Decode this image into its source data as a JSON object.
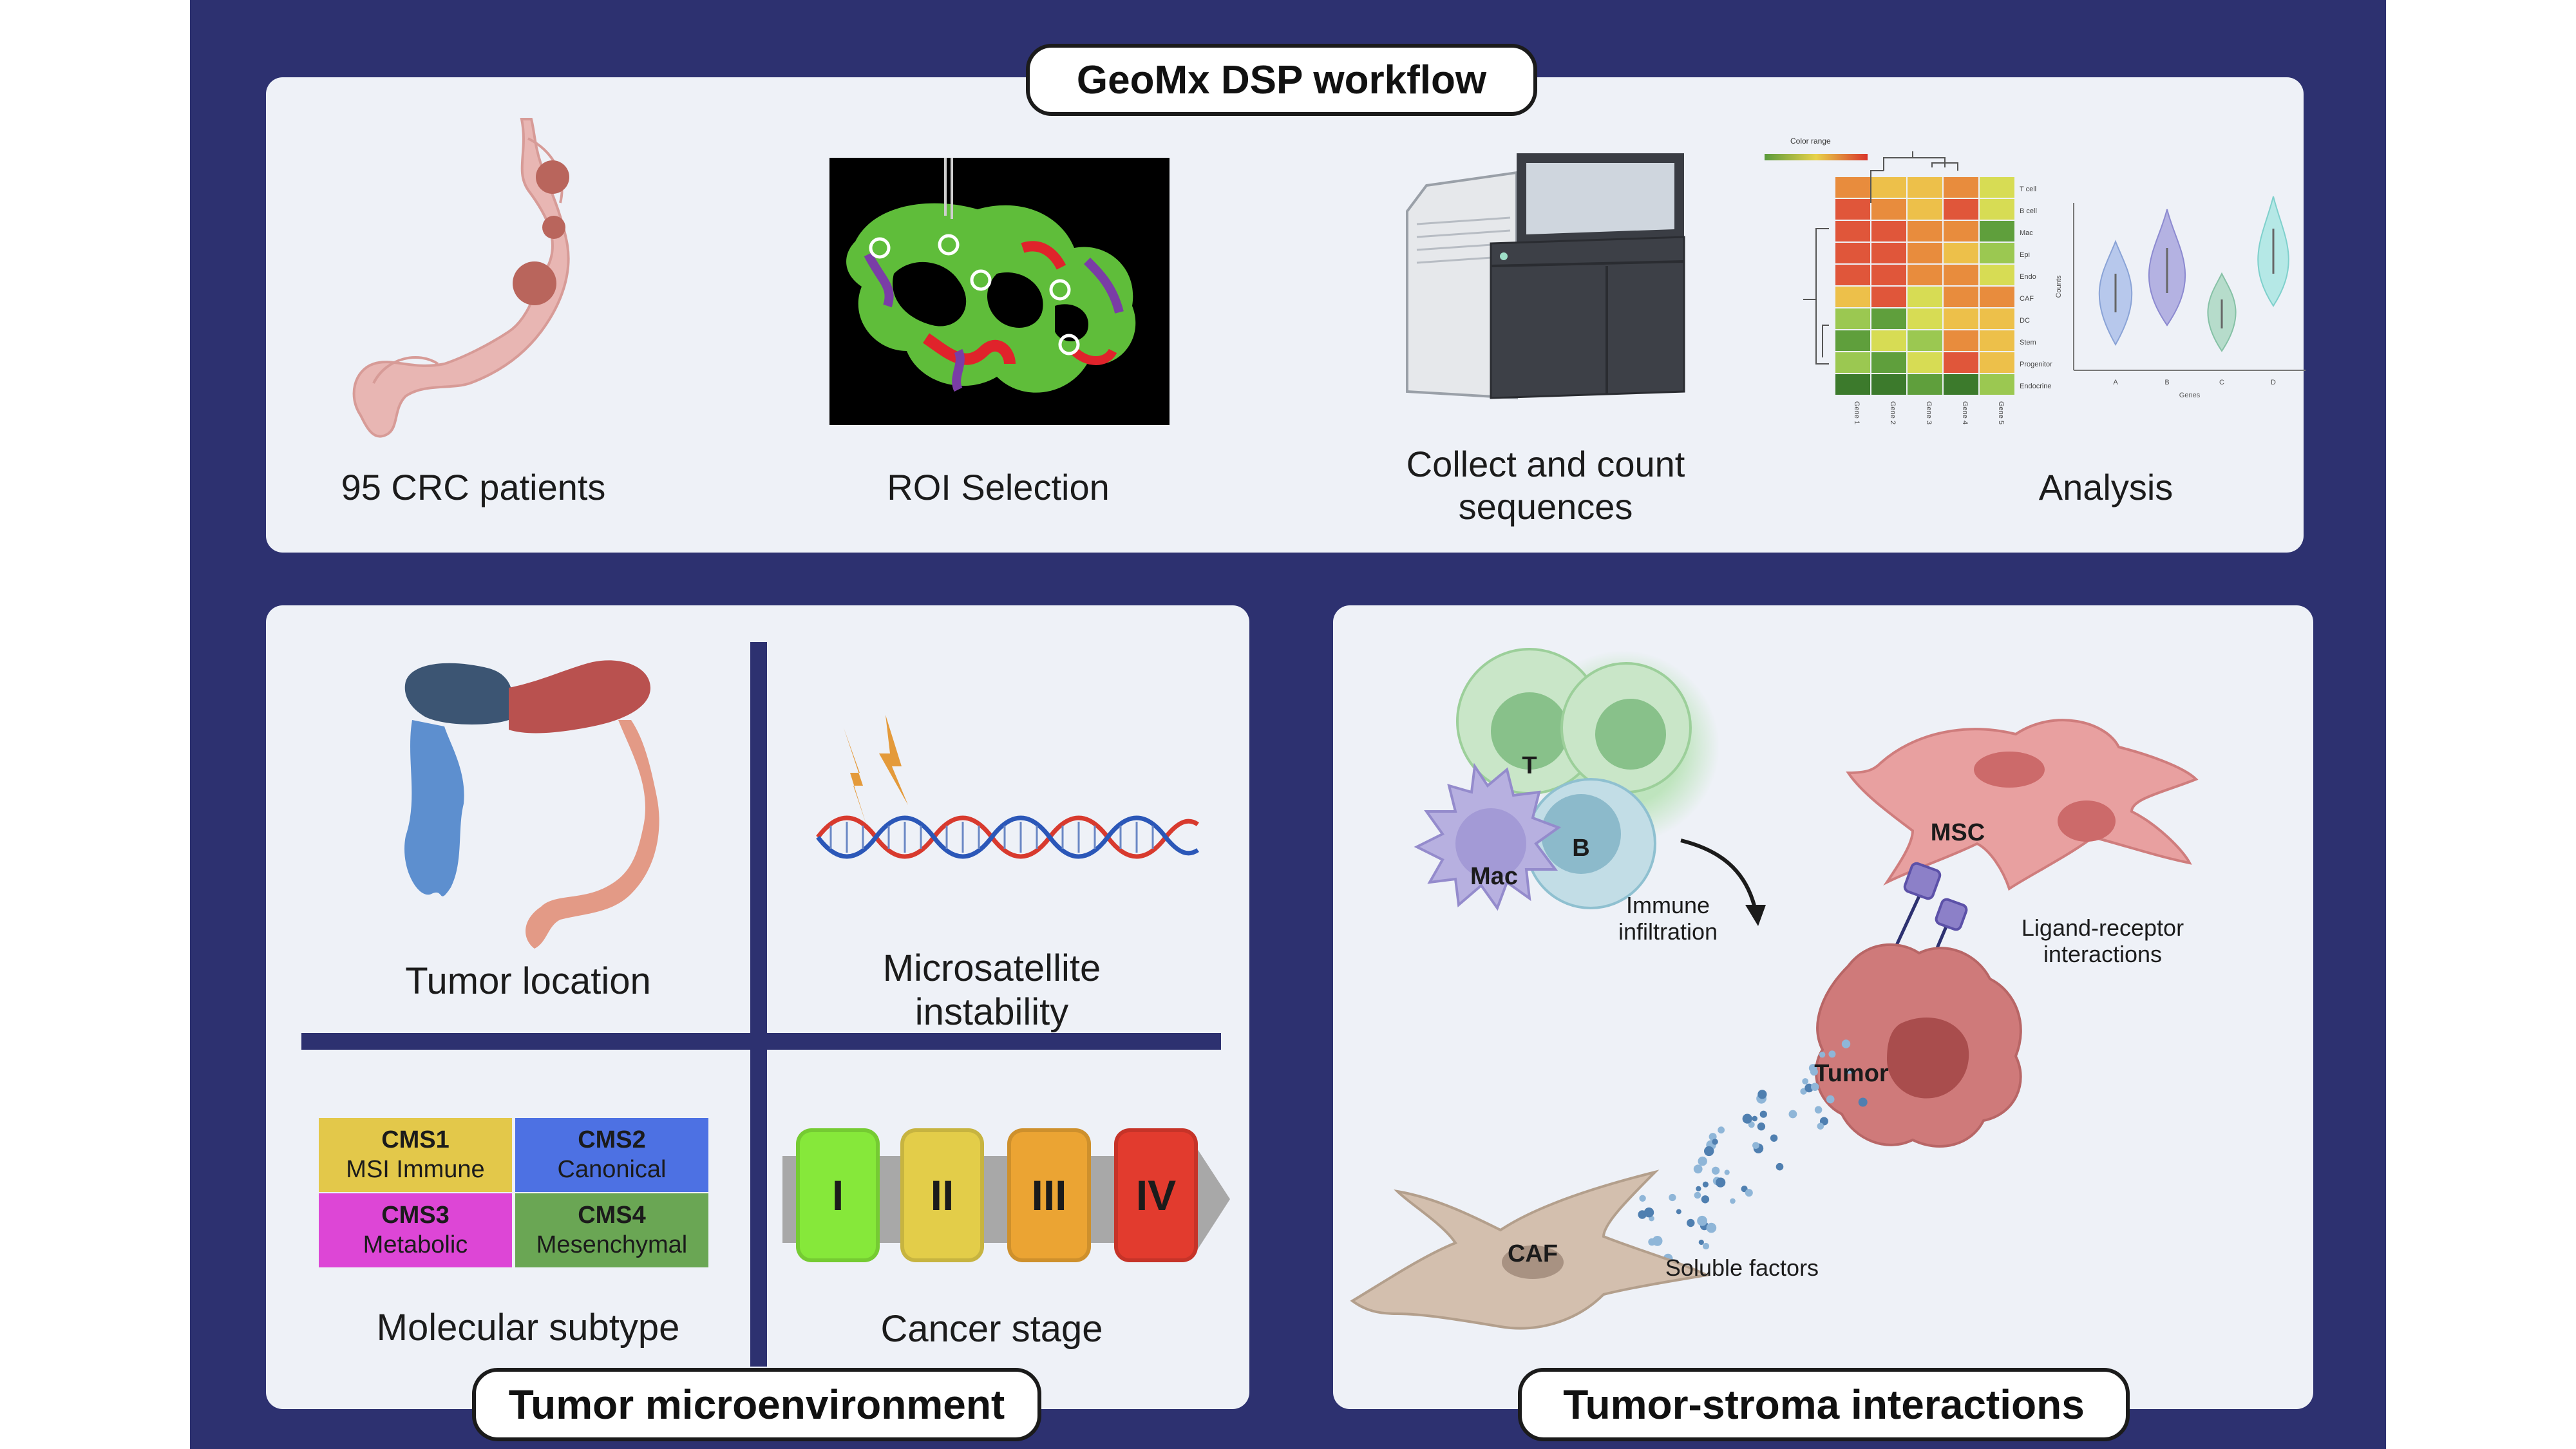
{
  "workflow": {
    "title": "GeoMx DSP workflow",
    "steps": [
      {
        "label": "95 CRC patients",
        "icon": "colon-icon"
      },
      {
        "label": "ROI Selection",
        "icon": "roi-tissue-icon"
      },
      {
        "label": "Collect and count sequences",
        "icon": "sequencer-icon"
      },
      {
        "label": "Analysis",
        "icon": "heatmap-violin-icon"
      }
    ],
    "heatmap": {
      "legend": "Color range",
      "rows": [
        "T cell",
        "B cell",
        "Mac",
        "Epi",
        "Endo",
        "CAF",
        "DC",
        "Stem",
        "Progenitor",
        "Endocrine"
      ],
      "cols": [
        "Gene 1",
        "Gene 2",
        "Gene 3",
        "Gene 4",
        "Gene 5"
      ],
      "violin_xlabel": "Genes",
      "violin_ylabel": "Counts",
      "violin_categories": [
        "A",
        "B",
        "C",
        "D"
      ]
    }
  },
  "tme": {
    "title": "Tumor microenvironment",
    "quadrants": {
      "location": "Tumor location",
      "msi": "Microsatellite instability",
      "subtype": "Molecular subtype",
      "stage": "Cancer stage"
    },
    "cms": [
      {
        "code": "CMS1",
        "name": "MSI Immune",
        "color": "#e3c84a"
      },
      {
        "code": "CMS2",
        "name": "Canonical",
        "color": "#4d71e3"
      },
      {
        "code": "CMS3",
        "name": "Metabolic",
        "color": "#dd46d6"
      },
      {
        "code": "CMS4",
        "name": "Mesenchymal",
        "color": "#6aa654"
      }
    ],
    "stages": [
      {
        "label": "I",
        "color": "#86e83a"
      },
      {
        "label": "II",
        "color": "#e3cd49"
      },
      {
        "label": "III",
        "color": "#eba433"
      },
      {
        "label": "IV",
        "color": "#e23b2e"
      }
    ]
  },
  "stroma": {
    "title": "Tumor-stroma interactions",
    "cells": {
      "t": "T",
      "b": "B",
      "mac": "Mac",
      "msc": "MSC",
      "tumor": "Tumor",
      "caf": "CAF"
    },
    "labels": {
      "immune": "Immune infiltration",
      "ligand": "Ligand-receptor interactions",
      "soluble": "Soluble factors"
    }
  }
}
